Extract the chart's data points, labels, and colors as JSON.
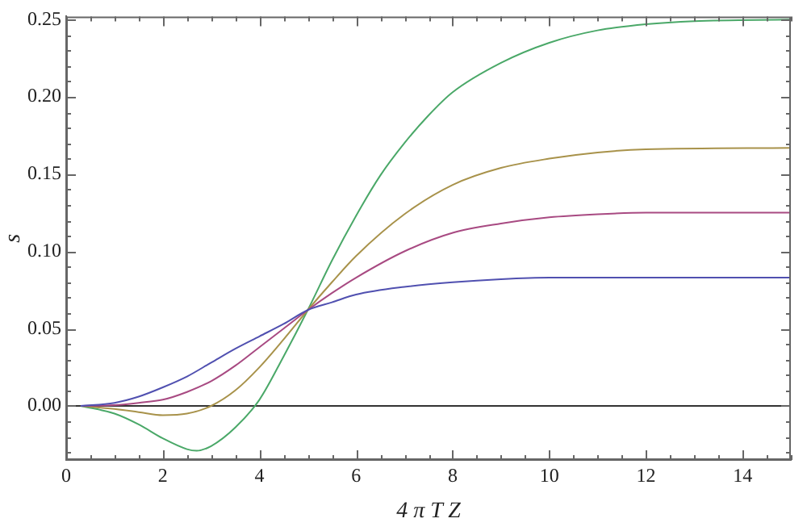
{
  "chart_data": {
    "type": "line",
    "xlabel": "4 π T Z",
    "ylabel": "s",
    "xlim": [
      0,
      15
    ],
    "ylim": [
      -0.035,
      0.252
    ],
    "xticks": [
      0,
      {
        "value": 0.5,
        "label": null
      },
      {
        "value": 1,
        "label": null
      },
      {
        "value": 1.5,
        "label": null
      },
      2,
      {
        "value": 2.5,
        "label": null
      },
      {
        "value": 3,
        "label": null
      },
      {
        "value": 3.5,
        "label": null
      },
      4,
      {
        "value": 4.5,
        "label": null
      },
      {
        "value": 5,
        "label": null
      },
      {
        "value": 5.5,
        "label": null
      },
      6,
      {
        "value": 6.5,
        "label": null
      },
      {
        "value": 7,
        "label": null
      },
      {
        "value": 7.5,
        "label": null
      },
      8,
      {
        "value": 8.5,
        "label": null
      },
      {
        "value": 9,
        "label": null
      },
      {
        "value": 9.5,
        "label": null
      },
      10,
      {
        "value": 10.5,
        "label": null
      },
      {
        "value": 11,
        "label": null
      },
      {
        "value": 11.5,
        "label": null
      },
      12,
      {
        "value": 12.5,
        "label": null
      },
      {
        "value": 13,
        "label": null
      },
      {
        "value": 13.5,
        "label": null
      },
      14,
      {
        "value": 14.5,
        "label": null
      },
      {
        "value": 15,
        "label": null
      }
    ],
    "yticks": [
      {
        "value": -0.03,
        "label": null
      },
      {
        "value": -0.02,
        "label": null
      },
      {
        "value": -0.01,
        "label": null
      },
      {
        "value": 0,
        "label": "0.00"
      },
      {
        "value": 0.01,
        "label": null
      },
      {
        "value": 0.02,
        "label": null
      },
      {
        "value": 0.03,
        "label": null
      },
      {
        "value": 0.04,
        "label": null
      },
      {
        "value": 0.05,
        "label": "0.05"
      },
      {
        "value": 0.06,
        "label": null
      },
      {
        "value": 0.07,
        "label": null
      },
      {
        "value": 0.08,
        "label": null
      },
      {
        "value": 0.09,
        "label": null
      },
      {
        "value": 0.1,
        "label": "0.10"
      },
      {
        "value": 0.11,
        "label": null
      },
      {
        "value": 0.12,
        "label": null
      },
      {
        "value": 0.13,
        "label": null
      },
      {
        "value": 0.14,
        "label": null
      },
      {
        "value": 0.15,
        "label": "0.15"
      },
      {
        "value": 0.16,
        "label": null
      },
      {
        "value": 0.17,
        "label": null
      },
      {
        "value": 0.18,
        "label": null
      },
      {
        "value": 0.19,
        "label": null
      },
      {
        "value": 0.2,
        "label": "0.20"
      },
      {
        "value": 0.21,
        "label": null
      },
      {
        "value": 0.22,
        "label": null
      },
      {
        "value": 0.23,
        "label": null
      },
      {
        "value": 0.24,
        "label": null
      },
      {
        "value": 0.25,
        "label": "0.25"
      }
    ],
    "grid": false,
    "legend": false,
    "marker": "none",
    "line_style": "solid",
    "ref_lines": [
      {
        "axis": "y",
        "value": 0,
        "color": "#333333"
      }
    ],
    "series": [
      {
        "color": "#5050b0",
        "x": [
          0.3,
          1,
          1.5,
          2,
          2.5,
          3,
          3.5,
          4,
          4.5,
          5,
          5.5,
          6,
          7,
          8,
          9,
          10,
          12,
          15
        ],
        "values": [
          0,
          0.002,
          0.006,
          0.012,
          0.019,
          0.028,
          0.037,
          0.045,
          0.053,
          0.062,
          0.067,
          0.072,
          0.077,
          0.08,
          0.082,
          0.083,
          0.083,
          0.083
        ]
      },
      {
        "color": "#a84a82",
        "x": [
          0.3,
          1,
          1.5,
          2,
          2.5,
          3,
          3.5,
          4,
          4.5,
          5,
          5.5,
          6,
          7,
          8,
          9,
          10,
          11,
          12,
          15
        ],
        "values": [
          0,
          0.0005,
          0.002,
          0.004,
          0.009,
          0.016,
          0.026,
          0.038,
          0.05,
          0.062,
          0.073,
          0.083,
          0.1,
          0.112,
          0.118,
          0.122,
          0.124,
          0.125,
          0.125
        ]
      },
      {
        "color": "#a8924a",
        "x": [
          0.3,
          1,
          1.5,
          2,
          2.5,
          3,
          3.5,
          4,
          4.5,
          5,
          5.5,
          6,
          7,
          8,
          9,
          10,
          11,
          12,
          15
        ],
        "values": [
          0,
          -0.002,
          -0.004,
          -0.006,
          -0.005,
          0,
          0.01,
          0.025,
          0.043,
          0.062,
          0.08,
          0.097,
          0.124,
          0.143,
          0.154,
          0.16,
          0.164,
          0.166,
          0.167
        ]
      },
      {
        "color": "#4aa868",
        "x": [
          0.3,
          1,
          1.5,
          2,
          2.5,
          2.7,
          3,
          3.5,
          4,
          4.5,
          5,
          5.5,
          6,
          6.5,
          7,
          7.5,
          8,
          9,
          10,
          11,
          12,
          13,
          15
        ],
        "values": [
          0,
          -0.005,
          -0.012,
          -0.021,
          -0.028,
          -0.029,
          -0.026,
          -0.014,
          0.004,
          0.032,
          0.062,
          0.094,
          0.123,
          0.149,
          0.17,
          0.188,
          0.203,
          0.222,
          0.235,
          0.243,
          0.247,
          0.249,
          0.25
        ]
      }
    ]
  }
}
